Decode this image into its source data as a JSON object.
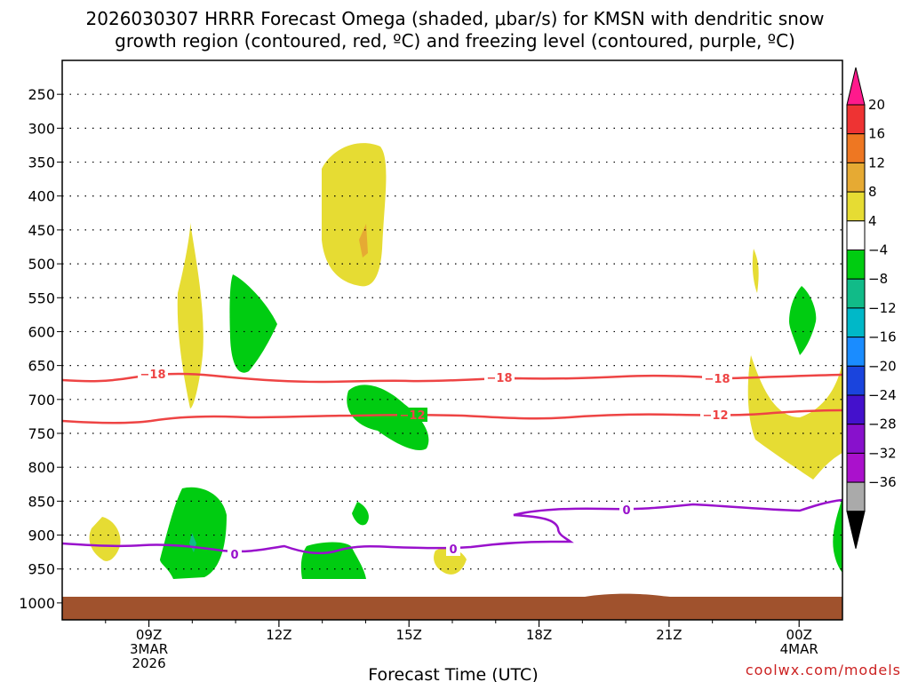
{
  "title_line1": "2026030307 HRRR Forecast Omega (shaded, μbar/s) for KMSN with dendritic snow",
  "title_line2": "growth region (contoured, red, ºC) and freezing level (contoured, purple, ºC)",
  "credit": "coolwx.com/models",
  "chart_data": {
    "type": "time-height contour",
    "title": "2026030307 HRRR Forecast Omega (shaded, μbar/s) for KMSN with dendritic snow growth region (contoured, red, ºC) and freezing level (contoured, purple, ºC)",
    "xlabel": "Forecast Time (UTC)",
    "ylabel": "",
    "x_range_hours_utc": [
      7,
      25
    ],
    "y_range_hPa": [
      200,
      1025
    ],
    "y_ticks": [
      "250",
      "300",
      "350",
      "400",
      "450",
      "500",
      "550",
      "600",
      "650",
      "700",
      "750",
      "800",
      "850",
      "900",
      "950",
      "1000"
    ],
    "x_ticks": [
      {
        "label": "09Z",
        "sub1": "3MAR",
        "sub2": "2026"
      },
      {
        "label": "12Z",
        "sub1": "",
        "sub2": ""
      },
      {
        "label": "15Z",
        "sub1": "",
        "sub2": ""
      },
      {
        "label": "18Z",
        "sub1": "",
        "sub2": ""
      },
      {
        "label": "21Z",
        "sub1": "",
        "sub2": ""
      },
      {
        "label": "00Z",
        "sub1": "4MAR",
        "sub2": ""
      }
    ],
    "colorbar": {
      "labels": [
        "20",
        "16",
        "12",
        "8",
        "4",
        "−4",
        "−8",
        "−12",
        "−16",
        "−20",
        "−24",
        "−28",
        "−32",
        "−36"
      ],
      "colors": [
        "#ff1a8c",
        "#ee3333",
        "#ee7722",
        "#e6aa33",
        "#e6dc33",
        "#ffffff",
        "#00cc11",
        "#11bb88",
        "#00b8c8",
        "#1a8cff",
        "#1a44dd",
        "#4411cc",
        "#8811cc",
        "#aa11cc",
        "#aaaaaa",
        "#000000"
      ]
    },
    "contours": [
      {
        "name": "dgz-top",
        "value": "−18",
        "color": "#ee4444",
        "label": "−18"
      },
      {
        "name": "dgz-bottom",
        "value": "−12",
        "color": "#ee4444",
        "label": "−12"
      },
      {
        "name": "freezing-level",
        "value": "0",
        "color": "#9911cc",
        "label": "0"
      }
    ],
    "surface_color": "#a0522d"
  }
}
